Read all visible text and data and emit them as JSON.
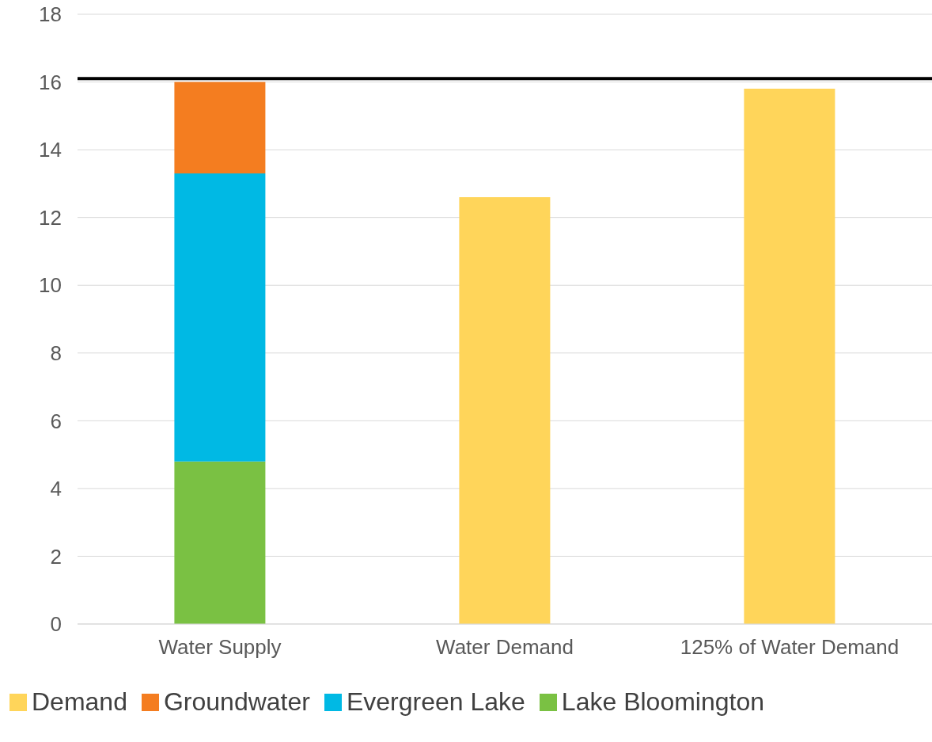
{
  "chart_data": {
    "type": "bar",
    "stacked": true,
    "categories": [
      "Water Supply",
      "Water Demand",
      "125% of Water Demand"
    ],
    "series": [
      {
        "name": "Lake Bloomington",
        "color": "#7ac143",
        "values": [
          4.8,
          null,
          null
        ]
      },
      {
        "name": "Evergreen Lake",
        "color": "#00b9e4",
        "values": [
          8.5,
          null,
          null
        ]
      },
      {
        "name": "Groundwater",
        "color": "#f47d20",
        "values": [
          2.7,
          null,
          null
        ]
      },
      {
        "name": "Demand",
        "color": "#ffd55a",
        "values": [
          null,
          12.6,
          15.8
        ]
      }
    ],
    "ylim": [
      0,
      18
    ],
    "yticks": [
      0,
      2,
      4,
      6,
      8,
      10,
      12,
      14,
      16,
      18
    ],
    "grid": "y",
    "legend": "bottom",
    "ref_lines": [
      {
        "axis": "y",
        "value": 16.1,
        "color": "#000000"
      }
    ]
  }
}
